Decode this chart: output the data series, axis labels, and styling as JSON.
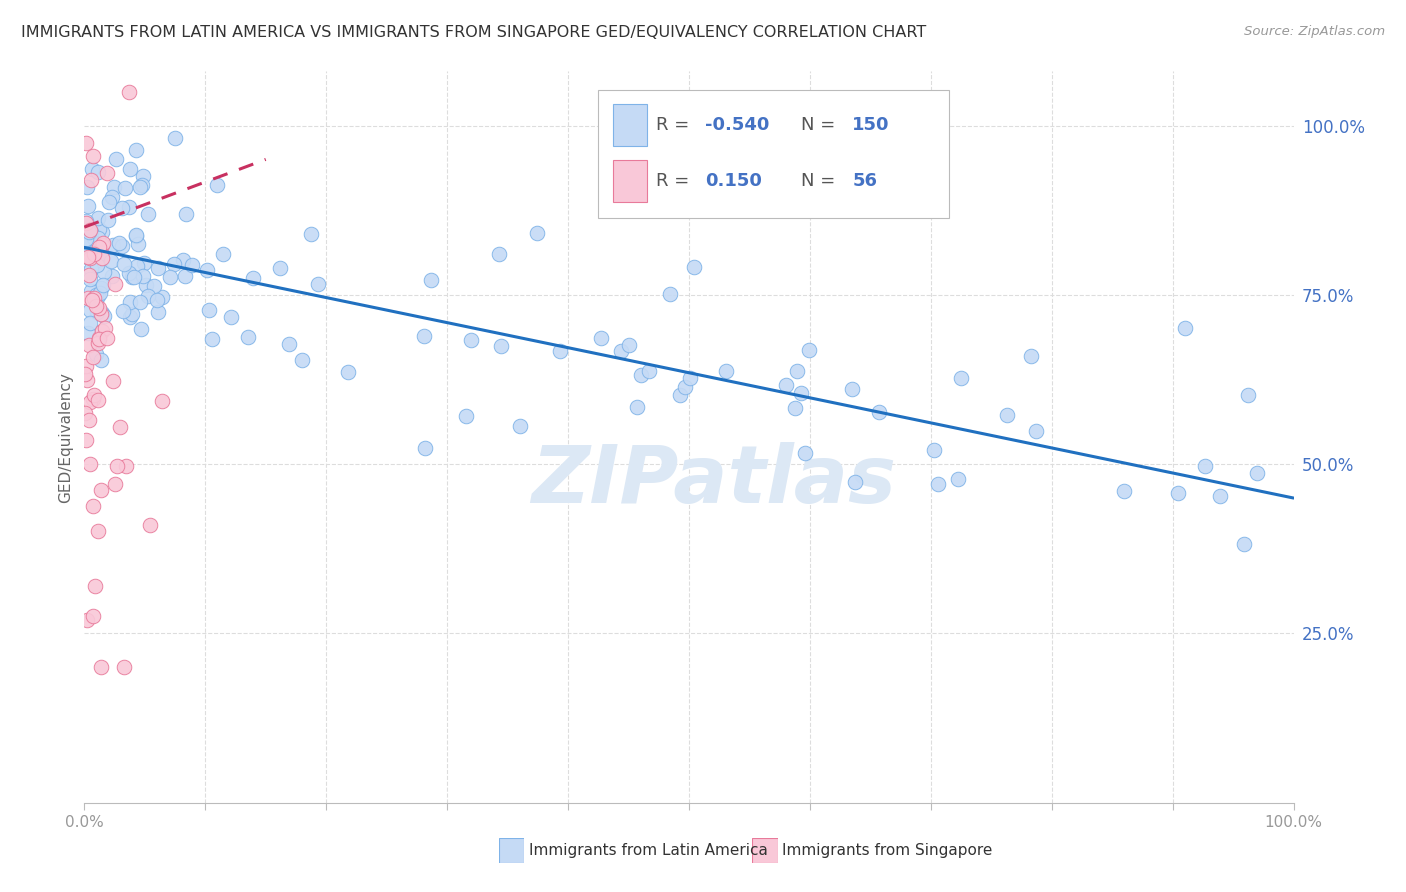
{
  "title": "IMMIGRANTS FROM LATIN AMERICA VS IMMIGRANTS FROM SINGAPORE GED/EQUIVALENCY CORRELATION CHART",
  "source": "Source: ZipAtlas.com",
  "ylabel": "GED/Equivalency",
  "series1_color": "#c5daf5",
  "series1_edge": "#7fb3e8",
  "series2_color": "#f9c8d8",
  "series2_edge": "#e87a9a",
  "line1_color": "#2070c0",
  "line2_color": "#c83060",
  "line2_dash": "dashed",
  "background_color": "#ffffff",
  "grid_color": "#dddddd",
  "watermark_color": "#dce8f5",
  "right_label_color": "#4472c4"
}
